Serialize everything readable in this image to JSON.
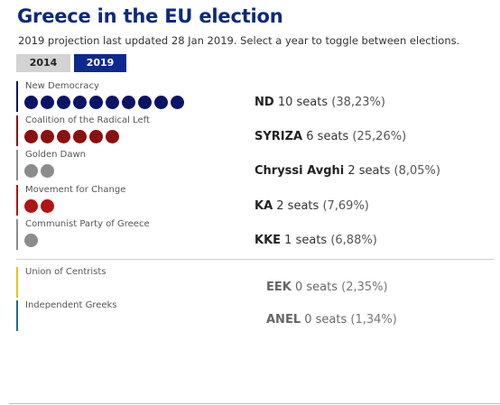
{
  "header": {
    "title": "Greece in the EU election",
    "subtitle": "2019 projection last updated 28 Jan 2019. Select a year to toggle between elections."
  },
  "tabs": [
    {
      "label": "2014",
      "active": false
    },
    {
      "label": "2019",
      "active": true
    }
  ],
  "colors": {
    "nd": "#0a1466",
    "syriza": "#8b1010",
    "chryssi_avghi": "#8c8c8c",
    "ka": "#b01414",
    "kke": "#8c8c8c",
    "eek": "#e5c21b",
    "anel": "#1d6e84",
    "accent": "#0b2a8e"
  },
  "parties": [
    {
      "name": "New Democracy",
      "abbr": "ND",
      "seats_text": "10 seats",
      "pct_text": "(38,23%)",
      "seats": 10,
      "color": "#0a1466"
    },
    {
      "name": "Coalition of the Radical Left",
      "abbr": "SYRIZA",
      "seats_text": "6 seats",
      "pct_text": "(25,26%)",
      "seats": 6,
      "color": "#8b1010"
    },
    {
      "name": "Golden Dawn",
      "abbr": "Chryssi Avghi",
      "seats_text": "2 seats",
      "pct_text": "(8,05%)",
      "seats": 2,
      "color": "#8c8c8c"
    },
    {
      "name": "Movement for Change",
      "abbr": "KA",
      "seats_text": "2 seats",
      "pct_text": "(7,69%)",
      "seats": 2,
      "color": "#b01414"
    },
    {
      "name": "Communist Party of Greece",
      "abbr": "KKE",
      "seats_text": "1 seats",
      "pct_text": "(6,88%)",
      "seats": 1,
      "color": "#8c8c8c"
    }
  ],
  "non_seat_parties": [
    {
      "name": "Union of Centrists",
      "abbr": "EEK",
      "seats_text": "0 seats",
      "pct_text": "(2,35%)",
      "seats": 0,
      "color": "#e5c21b"
    },
    {
      "name": "Independent Greeks",
      "abbr": "ANEL",
      "seats_text": "0 seats",
      "pct_text": "(1,34%)",
      "seats": 0,
      "color": "#1d6e84"
    }
  ]
}
